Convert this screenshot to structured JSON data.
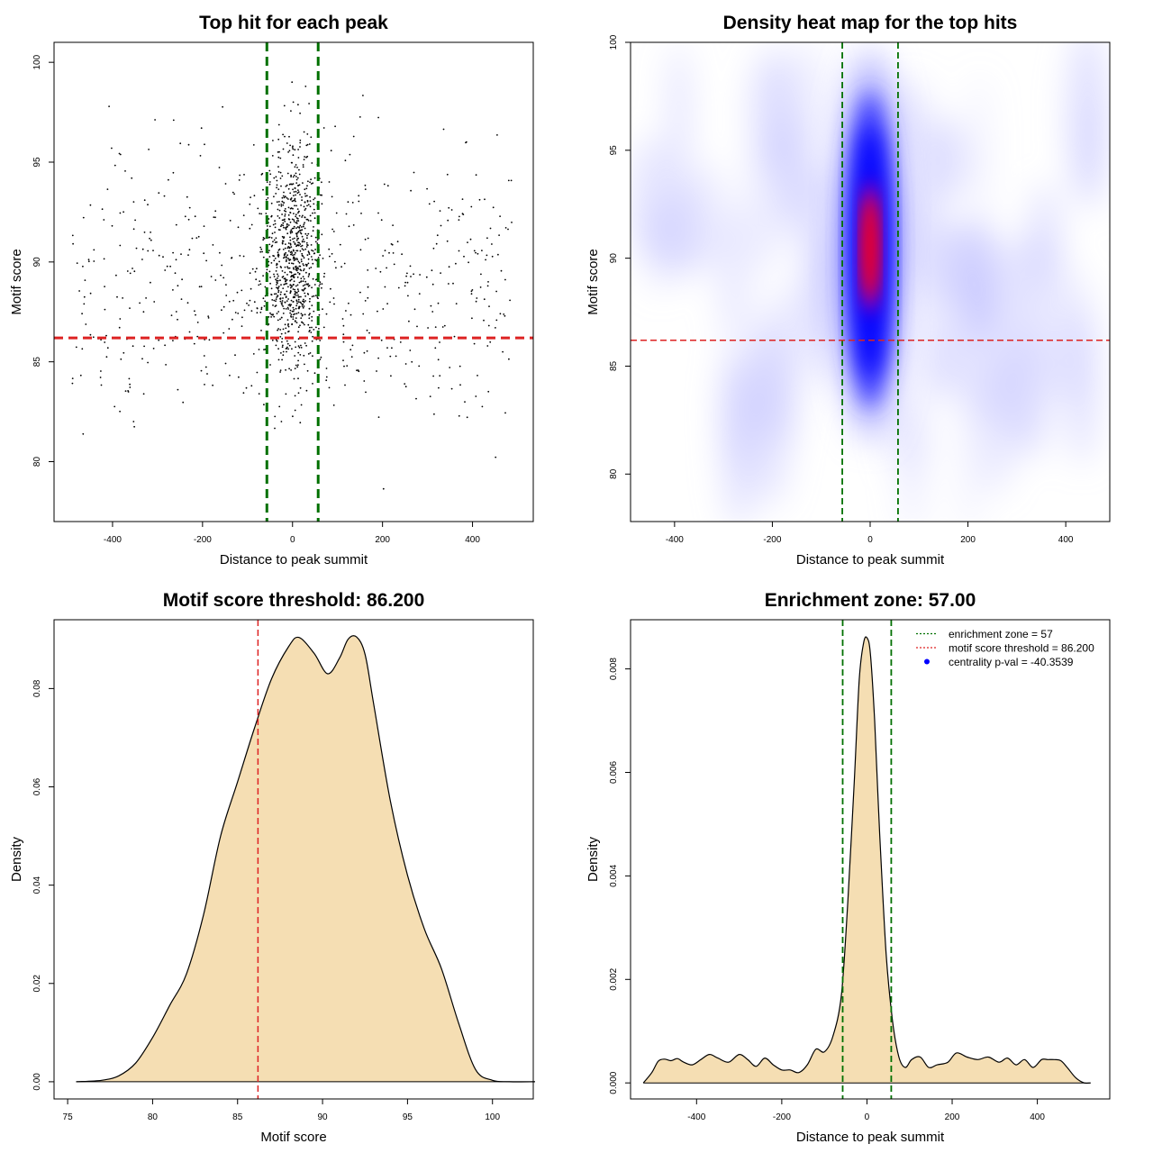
{
  "chart_data": [
    {
      "id": "scatter",
      "type": "scatter",
      "title": "Top hit for each peak",
      "xlabel": "Distance to peak summit",
      "ylabel": "Motif score",
      "xlim": [
        -530,
        535
      ],
      "ylim": [
        77,
        101
      ],
      "xticks": [
        -400,
        -200,
        0,
        200,
        400
      ],
      "yticks": [
        80,
        85,
        90,
        95,
        100
      ],
      "score_threshold": 86.2,
      "enrichment_zone": [
        -57,
        57
      ],
      "point_color": "#000000",
      "threshold_color": "#dd2222",
      "zone_color": "#007000",
      "n_points": 1400
    },
    {
      "id": "heatmap",
      "type": "heatmap",
      "title": "Density heat map for the top hits",
      "xlabel": "Distance to peak summit",
      "ylabel": "Motif score",
      "xlim": [
        -490,
        490
      ],
      "ylim": [
        77.8,
        100
      ],
      "xticks": [
        -400,
        -200,
        0,
        200,
        400
      ],
      "yticks": [
        80,
        85,
        90,
        95,
        100
      ],
      "peak_center": {
        "x": 0,
        "y": 90.5
      },
      "score_threshold": 86.2,
      "enrichment_zone": [
        -57,
        57
      ],
      "colors": {
        "low": "#ffffff",
        "mid": "#0000ff",
        "high": "#ff0000"
      }
    },
    {
      "id": "score-density",
      "type": "area",
      "title": "Motif score threshold: 86.200",
      "xlabel": "Motif score",
      "ylabel": "Density",
      "xlim": [
        74.2,
        102.4
      ],
      "ylim": [
        -0.0035,
        0.094
      ],
      "xticks": [
        75,
        80,
        85,
        90,
        95,
        100
      ],
      "yticks": [
        0.0,
        0.02,
        0.04,
        0.06,
        0.08
      ],
      "ytick_labels": [
        "0.00",
        "0.02",
        "0.04",
        "0.06",
        "0.08"
      ],
      "x": [
        75.5,
        77,
        78,
        79,
        80,
        81,
        82,
        83,
        84,
        85,
        86,
        87,
        88,
        88.6,
        89.5,
        90.3,
        91,
        91.5,
        92,
        92.5,
        93,
        94,
        95,
        96,
        97,
        98,
        99,
        100,
        101,
        102.5
      ],
      "y": [
        0.0,
        0.0003,
        0.0012,
        0.0038,
        0.009,
        0.0155,
        0.022,
        0.034,
        0.05,
        0.061,
        0.072,
        0.082,
        0.0885,
        0.0904,
        0.0872,
        0.083,
        0.0862,
        0.09,
        0.0905,
        0.087,
        0.077,
        0.057,
        0.042,
        0.031,
        0.023,
        0.012,
        0.0025,
        0.0003,
        0.0,
        0.0
      ],
      "fill_color": "#f5deb3",
      "threshold": 86.2,
      "threshold_color": "#dd2222"
    },
    {
      "id": "distance-density",
      "type": "area",
      "title": "Enrichment zone: 57.00",
      "xlabel": "Distance to peak summit",
      "ylabel": "Density",
      "xlim": [
        -555,
        570
      ],
      "ylim": [
        -0.00031,
        0.00895
      ],
      "xticks": [
        -400,
        -200,
        0,
        200,
        400
      ],
      "yticks": [
        0.0,
        0.002,
        0.004,
        0.006,
        0.008
      ],
      "ytick_labels": [
        "0.000",
        "0.002",
        "0.004",
        "0.006",
        "0.008"
      ],
      "x": [
        -525,
        -505,
        -490,
        -475,
        -460,
        -445,
        -430,
        -410,
        -390,
        -370,
        -350,
        -325,
        -300,
        -280,
        -260,
        -240,
        -220,
        -200,
        -180,
        -160,
        -140,
        -120,
        -100,
        -80,
        -60,
        -45,
        -30,
        -18,
        -8,
        0,
        8,
        18,
        30,
        45,
        60,
        75,
        90,
        105,
        125,
        145,
        165,
        190,
        210,
        235,
        260,
        285,
        310,
        330,
        350,
        370,
        390,
        410,
        425,
        440,
        455,
        470,
        490,
        510,
        525
      ],
      "y": [
        0.0,
        0.0002,
        0.00042,
        0.00046,
        0.00043,
        0.00047,
        0.0004,
        0.00035,
        0.00045,
        0.00055,
        0.00048,
        0.0004,
        0.00055,
        0.00045,
        0.00032,
        0.00048,
        0.00035,
        0.00025,
        0.00025,
        0.0002,
        0.00035,
        0.00065,
        0.0006,
        0.0009,
        0.0017,
        0.0035,
        0.0058,
        0.0078,
        0.0085,
        0.0086,
        0.0083,
        0.007,
        0.0048,
        0.0025,
        0.0012,
        0.0005,
        0.0003,
        0.00045,
        0.0005,
        0.0003,
        0.00035,
        0.0004,
        0.00058,
        0.0005,
        0.00045,
        0.0005,
        0.0004,
        0.00048,
        0.00035,
        0.00045,
        0.0003,
        0.00045,
        0.00045,
        0.00045,
        0.00043,
        0.0003,
        0.0001,
        0.0,
        0.0
      ],
      "fill_color": "#f5deb3",
      "zone": [
        -57,
        57
      ],
      "zone_color": "#007000",
      "legend": [
        {
          "label": "enrichment zone = 57",
          "style": "dotted-line",
          "color": "#007000"
        },
        {
          "label": "motif score threshold = 86.200",
          "style": "dotted-line",
          "color": "#dd2222"
        },
        {
          "label": "centrality p-val = -40.3539",
          "style": "point",
          "color": "#0000ff"
        }
      ]
    }
  ]
}
